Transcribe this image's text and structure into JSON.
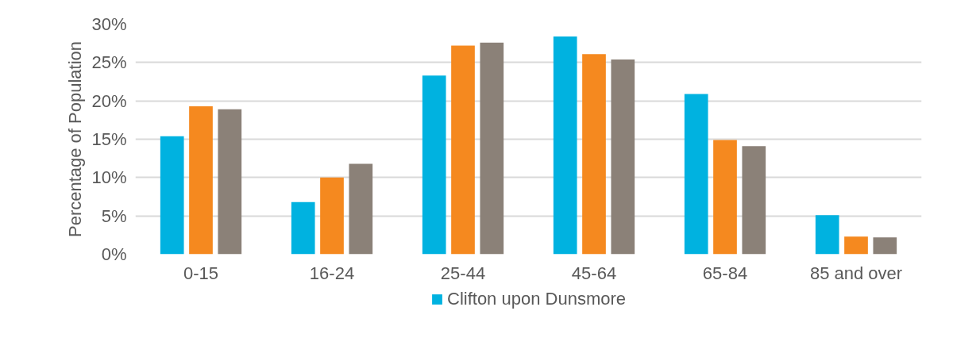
{
  "chart_data": {
    "type": "bar",
    "ylabel": "Percentage of Population",
    "categories": [
      "0-15",
      "16-24",
      "25-44",
      "45-64",
      "65-84",
      "85 and over"
    ],
    "series": [
      {
        "name": "Clifton upon Dunsmore",
        "color": "#00b2e0",
        "values": [
          15.4,
          6.8,
          23.3,
          28.4,
          20.9,
          5.1
        ]
      },
      {
        "color": "#f5891f",
        "values": [
          19.3,
          10.0,
          27.2,
          26.1,
          14.9,
          2.3
        ]
      },
      {
        "color": "#8b8178",
        "values": [
          18.9,
          11.8,
          27.6,
          25.4,
          14.1,
          2.2
        ]
      }
    ],
    "ylim": [
      0,
      30
    ],
    "yticks": [
      {
        "value": 0,
        "label": "0%"
      },
      {
        "value": 5,
        "label": "5%"
      },
      {
        "value": 10,
        "label": "10%"
      },
      {
        "value": 15,
        "label": "15%"
      },
      {
        "value": 20,
        "label": "20%"
      },
      {
        "value": 25,
        "label": "25%"
      },
      {
        "value": 30,
        "label": "30%"
      }
    ],
    "grid": "y",
    "legend": "bottom"
  }
}
